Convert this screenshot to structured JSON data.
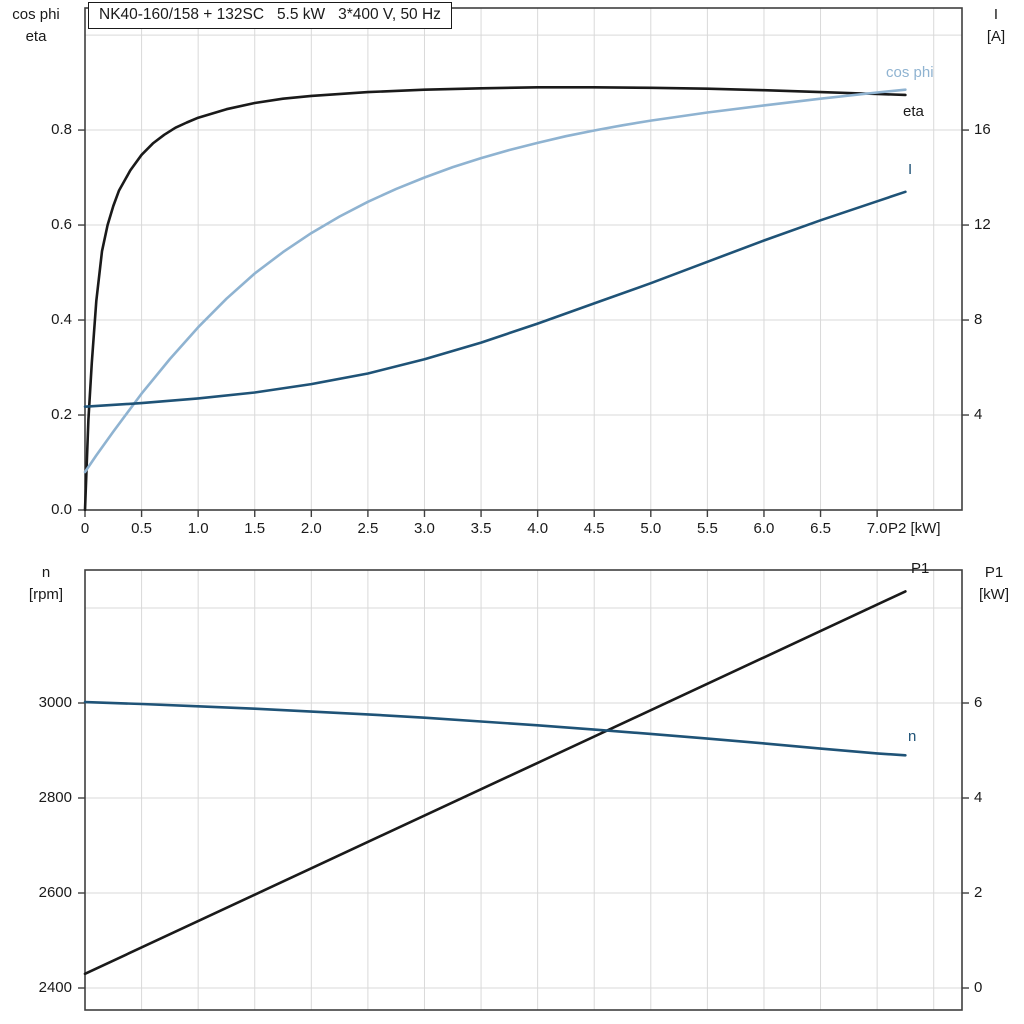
{
  "palette": {
    "black": "#1a1a1a",
    "light_blue": "#8fb3d1",
    "dark_blue": "#1f5377",
    "grid": "#d9d9d9",
    "frame": "#3f3f3f",
    "background": "#ffffff"
  },
  "chart_data": [
    {
      "type": "line",
      "title": "NK40-160/158 + 132SC   5.5 kW   3*400 V, 50 Hz",
      "x_axis": {
        "label": "P2 [kW]",
        "min": 0,
        "max": 7.75,
        "grid_step": 0.5,
        "ticks": [
          {
            "v": 0,
            "label": "0"
          },
          {
            "v": 0.5,
            "label": "0.5"
          },
          {
            "v": 1.0,
            "label": "1.0"
          },
          {
            "v": 1.5,
            "label": "1.5"
          },
          {
            "v": 2.0,
            "label": "2.0"
          },
          {
            "v": 2.5,
            "label": "2.5"
          },
          {
            "v": 3.0,
            "label": "3.0"
          },
          {
            "v": 3.5,
            "label": "3.5"
          },
          {
            "v": 4.0,
            "label": "4.0"
          },
          {
            "v": 4.5,
            "label": "4.5"
          },
          {
            "v": 5.0,
            "label": "5.0"
          },
          {
            "v": 5.5,
            "label": "5.5"
          },
          {
            "v": 6.0,
            "label": "6.0"
          },
          {
            "v": 6.5,
            "label": "6.5"
          },
          {
            "v": 7.0,
            "label": "7.0"
          }
        ]
      },
      "y_left": {
        "lines": [
          "cos phi",
          "eta"
        ],
        "bottom": 0,
        "top": 1.057,
        "grid": [
          0.2,
          0.4,
          0.6,
          0.8,
          1.0
        ],
        "ticks": [
          {
            "v": 0.0,
            "label": "0.0"
          },
          {
            "v": 0.2,
            "label": "0.2"
          },
          {
            "v": 0.4,
            "label": "0.4"
          },
          {
            "v": 0.6,
            "label": "0.6"
          },
          {
            "v": 0.8,
            "label": "0.8"
          }
        ]
      },
      "y_right": {
        "lines": [
          "I",
          "[A]"
        ],
        "bottom": 0,
        "top": 21.14,
        "ticks": [
          {
            "v": 4,
            "label": "4"
          },
          {
            "v": 8,
            "label": "8"
          },
          {
            "v": 12,
            "label": "12"
          },
          {
            "v": 16,
            "label": "16"
          }
        ]
      },
      "series": [
        {
          "label": "eta",
          "axis": "left",
          "color": "#1a1a1a",
          "points": [
            [
              0,
              0
            ],
            [
              0.03,
              0.19
            ],
            [
              0.06,
              0.31
            ],
            [
              0.1,
              0.44
            ],
            [
              0.15,
              0.545
            ],
            [
              0.2,
              0.6
            ],
            [
              0.25,
              0.64
            ],
            [
              0.3,
              0.672
            ],
            [
              0.4,
              0.715
            ],
            [
              0.5,
              0.748
            ],
            [
              0.6,
              0.772
            ],
            [
              0.7,
              0.79
            ],
            [
              0.8,
              0.805
            ],
            [
              0.9,
              0.816
            ],
            [
              1.0,
              0.826
            ],
            [
              1.25,
              0.844
            ],
            [
              1.5,
              0.857
            ],
            [
              1.75,
              0.866
            ],
            [
              2.0,
              0.872
            ],
            [
              2.5,
              0.88
            ],
            [
              3.0,
              0.885
            ],
            [
              3.5,
              0.888
            ],
            [
              4.0,
              0.89
            ],
            [
              4.5,
              0.89
            ],
            [
              5.0,
              0.889
            ],
            [
              5.5,
              0.887
            ],
            [
              6.0,
              0.884
            ],
            [
              6.5,
              0.88
            ],
            [
              7.0,
              0.876
            ],
            [
              7.25,
              0.874
            ]
          ]
        },
        {
          "label": "cos phi",
          "axis": "left",
          "color": "#8fb3d1",
          "points": [
            [
              0,
              0.08
            ],
            [
              0.1,
              0.115
            ],
            [
              0.25,
              0.165
            ],
            [
              0.5,
              0.245
            ],
            [
              0.75,
              0.318
            ],
            [
              1.0,
              0.385
            ],
            [
              1.25,
              0.445
            ],
            [
              1.5,
              0.498
            ],
            [
              1.75,
              0.543
            ],
            [
              2.0,
              0.583
            ],
            [
              2.25,
              0.618
            ],
            [
              2.5,
              0.649
            ],
            [
              2.75,
              0.676
            ],
            [
              3.0,
              0.7
            ],
            [
              3.25,
              0.722
            ],
            [
              3.5,
              0.741
            ],
            [
              3.75,
              0.758
            ],
            [
              4.0,
              0.773
            ],
            [
              4.25,
              0.787
            ],
            [
              4.5,
              0.799
            ],
            [
              4.75,
              0.81
            ],
            [
              5.0,
              0.82
            ],
            [
              5.5,
              0.837
            ],
            [
              6.0,
              0.852
            ],
            [
              6.5,
              0.866
            ],
            [
              7.0,
              0.879
            ],
            [
              7.25,
              0.885
            ]
          ]
        },
        {
          "label": "I",
          "axis": "right",
          "color": "#1f5377",
          "points": [
            [
              0,
              4.35
            ],
            [
              0.5,
              4.5
            ],
            [
              1.0,
              4.7
            ],
            [
              1.5,
              4.95
            ],
            [
              2.0,
              5.3
            ],
            [
              2.5,
              5.75
            ],
            [
              3.0,
              6.35
            ],
            [
              3.5,
              7.05
            ],
            [
              4.0,
              7.85
            ],
            [
              4.5,
              8.7
            ],
            [
              5.0,
              9.55
            ],
            [
              5.5,
              10.45
            ],
            [
              6.0,
              11.35
            ],
            [
              6.5,
              12.2
            ],
            [
              7.0,
              13.0
            ],
            [
              7.25,
              13.4
            ]
          ]
        }
      ]
    },
    {
      "type": "line",
      "title": "",
      "x_axis": {
        "label": "",
        "min": 0,
        "max": 7.75,
        "grid_step": 0.5,
        "ticks": []
      },
      "y_left": {
        "lines": [
          "n",
          "[rpm]"
        ],
        "bottom": 2353.7,
        "top": 3280,
        "grid": [
          2400,
          2600,
          2800,
          3000,
          3200
        ],
        "ticks": [
          {
            "v": 2400,
            "label": "2400"
          },
          {
            "v": 2600,
            "label": "2600"
          },
          {
            "v": 2800,
            "label": "2800"
          },
          {
            "v": 3000,
            "label": "3000"
          }
        ]
      },
      "y_right": {
        "lines": [
          "P1",
          "[kW]"
        ],
        "bottom": -0.463,
        "top": 8.8,
        "ticks": [
          {
            "v": 0,
            "label": "0"
          },
          {
            "v": 2,
            "label": "2"
          },
          {
            "v": 4,
            "label": "4"
          },
          {
            "v": 6,
            "label": "6"
          }
        ]
      },
      "series": [
        {
          "label": "P1",
          "axis": "right",
          "color": "#1a1a1a",
          "points": [
            [
              0,
              0.3
            ],
            [
              2,
              2.52
            ],
            [
              4,
              4.74
            ],
            [
              6,
              6.96
            ],
            [
              7.25,
              8.35
            ]
          ]
        },
        {
          "label": "n",
          "axis": "left",
          "color": "#1f5377",
          "points": [
            [
              0,
              3002
            ],
            [
              0.5,
              2998
            ],
            [
              1.0,
              2993
            ],
            [
              1.5,
              2988
            ],
            [
              2.0,
              2982
            ],
            [
              2.5,
              2976
            ],
            [
              3.0,
              2969
            ],
            [
              3.5,
              2961
            ],
            [
              4.0,
              2953
            ],
            [
              4.5,
              2944
            ],
            [
              5.0,
              2935
            ],
            [
              5.5,
              2925
            ],
            [
              6.0,
              2915
            ],
            [
              6.5,
              2904
            ],
            [
              7.0,
              2894
            ],
            [
              7.25,
              2890
            ]
          ]
        }
      ]
    }
  ]
}
